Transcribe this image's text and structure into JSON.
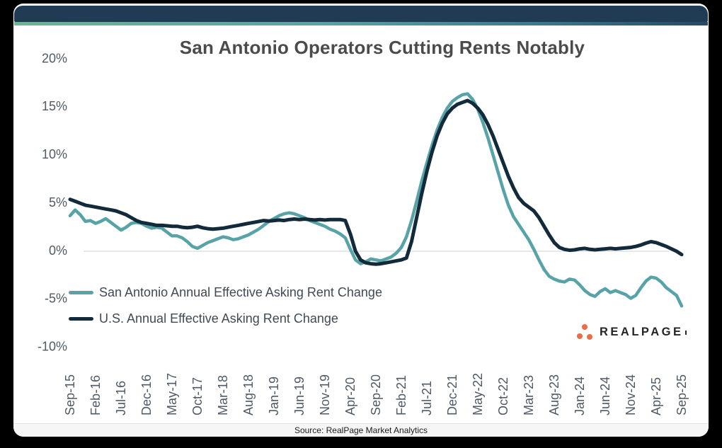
{
  "window": {
    "background_color": "#000000"
  },
  "header": {
    "bar_color": "#213b55",
    "accent_gradient": [
      "#6ab795",
      "#55a5a4",
      "#3a7b8f",
      "#274a63"
    ]
  },
  "chart_data": {
    "type": "line",
    "title": "San Antonio Operators Cutting Rents Notably",
    "x_start": "Sep-15",
    "x_end": "Sep-25",
    "x_frequency": "monthly",
    "x_tick_interval_months": 5,
    "x_tick_labels": [
      "Sep-15",
      "Feb-16",
      "Jul-16",
      "Dec-16",
      "May-17",
      "Oct-17",
      "Mar-18",
      "Aug-18",
      "Jan-19",
      "Jun-19",
      "Nov-19",
      "Apr-20",
      "Sep-20",
      "Feb-21",
      "Jul-21",
      "Dec-21",
      "May-22",
      "Oct-22",
      "Mar-23",
      "Aug-23",
      "Jan-24",
      "Jun-24",
      "Nov-24",
      "Apr-25",
      "Sep-25"
    ],
    "y_ticks": [
      {
        "label": "20%",
        "value": 20
      },
      {
        "label": "15%",
        "value": 15
      },
      {
        "label": "10%",
        "value": 10
      },
      {
        "label": "5%",
        "value": 5
      },
      {
        "label": "0%",
        "value": 0
      },
      {
        "label": "-5%",
        "value": -5
      },
      {
        "label": "-10%",
        "value": -10
      }
    ],
    "ylim": [
      -10,
      20
    ],
    "grid": "zero-line-only",
    "zero_line_color": "#d9d9d9",
    "legend_position": "inside-bottom-left",
    "series": [
      {
        "name": "San Antonio Annual Effective Asking Rent Change",
        "color": "#58a3a8",
        "line_width": 4.5,
        "data_name": "series-line-san-antonio",
        "values": [
          3.7,
          4.3,
          3.8,
          3.1,
          3.2,
          2.9,
          3.1,
          3.4,
          3.0,
          2.6,
          2.2,
          2.5,
          2.9,
          3.0,
          2.9,
          2.6,
          2.4,
          2.5,
          2.4,
          2.0,
          1.6,
          1.6,
          1.4,
          1.0,
          0.5,
          0.3,
          0.6,
          0.9,
          1.1,
          1.3,
          1.5,
          1.4,
          1.2,
          1.3,
          1.5,
          1.7,
          2.0,
          2.3,
          2.7,
          3.1,
          3.4,
          3.7,
          3.9,
          4.0,
          3.9,
          3.7,
          3.5,
          3.2,
          3.0,
          2.8,
          2.6,
          2.3,
          2.1,
          1.8,
          1.4,
          0.2,
          -0.9,
          -1.3,
          -1.1,
          -0.8,
          -0.9,
          -1.0,
          -0.8,
          -0.6,
          -0.2,
          0.4,
          1.5,
          3.2,
          5.2,
          7.3,
          9.2,
          11.0,
          12.6,
          13.9,
          14.9,
          15.6,
          16.0,
          16.3,
          16.4,
          15.8,
          14.8,
          13.4,
          11.8,
          10.0,
          8.2,
          6.4,
          4.8,
          3.6,
          2.8,
          2.0,
          1.2,
          0.2,
          -0.9,
          -1.9,
          -2.6,
          -2.9,
          -3.1,
          -3.2,
          -2.9,
          -3.0,
          -3.5,
          -4.1,
          -4.5,
          -4.7,
          -4.2,
          -3.9,
          -4.3,
          -4.1,
          -4.3,
          -4.5,
          -4.9,
          -4.6,
          -3.8,
          -3.1,
          -2.7,
          -2.8,
          -3.2,
          -3.8,
          -4.2,
          -4.6,
          -5.7
        ]
      },
      {
        "name": "U.S. Annual Effective Asking Rent Change",
        "color": "#132a3b",
        "line_width": 5,
        "data_name": "series-line-us",
        "values": [
          5.4,
          5.2,
          5.0,
          4.8,
          4.7,
          4.6,
          4.5,
          4.4,
          4.3,
          4.2,
          4.0,
          3.8,
          3.5,
          3.2,
          3.0,
          2.9,
          2.8,
          2.7,
          2.7,
          2.65,
          2.6,
          2.6,
          2.5,
          2.45,
          2.5,
          2.6,
          2.45,
          2.35,
          2.3,
          2.35,
          2.4,
          2.5,
          2.6,
          2.7,
          2.8,
          2.9,
          3.0,
          3.1,
          3.2,
          3.15,
          3.2,
          3.25,
          3.2,
          3.3,
          3.35,
          3.3,
          3.35,
          3.3,
          3.25,
          3.3,
          3.25,
          3.3,
          3.3,
          3.3,
          3.2,
          1.8,
          0.0,
          -0.9,
          -1.2,
          -1.3,
          -1.35,
          -1.3,
          -1.2,
          -1.1,
          -1.0,
          -0.9,
          -0.7,
          1.0,
          3.5,
          6.0,
          8.3,
          10.3,
          12.0,
          13.3,
          14.3,
          14.9,
          15.3,
          15.5,
          15.7,
          15.4,
          14.9,
          14.2,
          13.2,
          12.0,
          10.6,
          9.2,
          7.8,
          6.6,
          5.6,
          5.0,
          4.6,
          4.2,
          3.5,
          2.6,
          1.7,
          0.9,
          0.4,
          0.2,
          0.1,
          0.15,
          0.25,
          0.3,
          0.2,
          0.15,
          0.2,
          0.25,
          0.3,
          0.25,
          0.3,
          0.35,
          0.4,
          0.5,
          0.65,
          0.85,
          1.0,
          0.9,
          0.7,
          0.5,
          0.25,
          0.0,
          -0.35
        ]
      }
    ]
  },
  "logo": {
    "text": "REALPAGE",
    "dot_color": "#e96c4b"
  },
  "footer": {
    "source": "Source: RealPage Market Analytics"
  }
}
